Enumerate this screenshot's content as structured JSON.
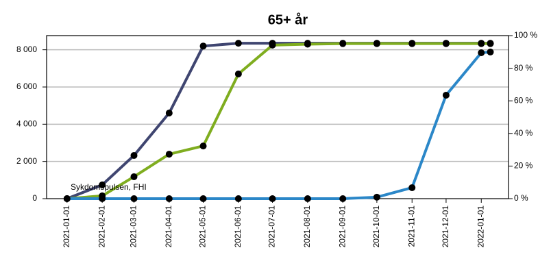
{
  "chart_data": {
    "type": "line",
    "title": "65+ år",
    "annotation": "Sykdomspulsen, FHI",
    "x": [
      "2021-01-01",
      "2021-02-01",
      "2021-03-01",
      "2021-04-01",
      "2021-05-01",
      "2021-06-01",
      "2021-07-01",
      "2021-08-01",
      "2021-09-01",
      "2021-10-01",
      "2021-11-01",
      "2021-12-01",
      "2022-01-01",
      "2022-01-09"
    ],
    "xlim": [
      "2020-12-14",
      "2022-01-25"
    ],
    "xticks": [
      "2021-01-01",
      "2021-02-01",
      "2021-03-01",
      "2021-04-01",
      "2021-05-01",
      "2021-06-01",
      "2021-07-01",
      "2021-08-01",
      "2021-09-01",
      "2021-10-01",
      "2021-11-01",
      "2021-12-01",
      "2022-01-01"
    ],
    "series": [
      {
        "color": "#3f4570",
        "values": [
          0,
          740,
          2320,
          4600,
          8200,
          8350,
          8350,
          8350,
          8350,
          8350,
          8350,
          8350,
          8350,
          8350
        ]
      },
      {
        "color": "#7fad1f",
        "values": [
          0,
          150,
          1180,
          2390,
          2830,
          6700,
          8250,
          8300,
          8330,
          8330,
          8330,
          8330,
          8330,
          8330
        ]
      },
      {
        "color": "#2b87c8",
        "values": [
          0,
          0,
          0,
          0,
          0,
          0,
          0,
          0,
          0,
          80,
          590,
          5560,
          7840,
          7880
        ]
      }
    ],
    "ylim": [
      0,
      8760
    ],
    "yticks": [
      0,
      {
        "value": 2000,
        "label": "2 000"
      },
      {
        "value": 4000,
        "label": "4 000"
      },
      {
        "value": 6000,
        "label": "6 000"
      },
      {
        "value": 8000,
        "label": "8 000"
      }
    ],
    "y2lim": [
      0,
      100
    ],
    "y2ticks": [
      {
        "value": 0,
        "label": "0 %"
      },
      {
        "value": 20,
        "label": "20 %"
      },
      {
        "value": 40,
        "label": "40 %"
      },
      {
        "value": 60,
        "label": "60 %"
      },
      {
        "value": 80,
        "label": "80 %"
      },
      {
        "value": 100,
        "label": "100 %"
      }
    ],
    "grid": true
  }
}
